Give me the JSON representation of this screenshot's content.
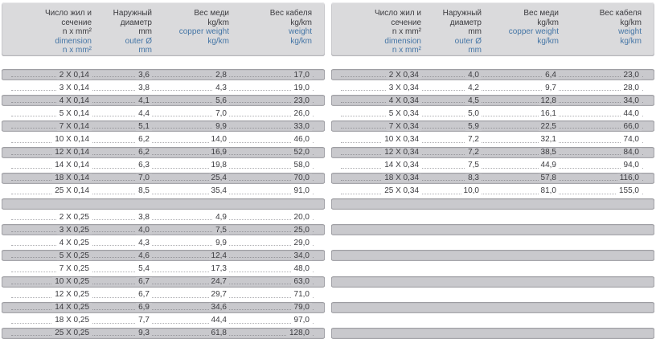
{
  "colors": {
    "header_bg": "#dadadc",
    "row_gray": "#c9c9cd",
    "row_white": "#ffffff",
    "accent_blue": "#4576a6",
    "text": "#3c3c40"
  },
  "header": {
    "columns": [
      {
        "ru": [
          "Число жил и",
          "сечение",
          "n x mm²"
        ],
        "en": [
          "dimension",
          "n x mm²"
        ]
      },
      {
        "ru": [
          "Наружный",
          "диаметр",
          "mm"
        ],
        "en": [
          "outer Ø",
          "mm"
        ]
      },
      {
        "ru": [
          "Вес меди",
          "kg/km"
        ],
        "en": [
          "copper weight",
          "kg/km"
        ]
      },
      {
        "ru": [
          "Вес кабеля",
          "kg/km"
        ],
        "en": [
          "weight",
          "kg/km"
        ]
      }
    ]
  },
  "tables": [
    {
      "id": "left",
      "groups": [
        {
          "rows": [
            [
              "2 X 0,14",
              "3,6",
              "2,8",
              "17,0"
            ],
            [
              "3 X 0,14",
              "3,8",
              "4,3",
              "19,0"
            ],
            [
              "4 X 0,14",
              "4,1",
              "5,6",
              "23,0"
            ],
            [
              "5 X 0,14",
              "4,4",
              "7,0",
              "26,0"
            ],
            [
              "7 X 0,14",
              "5,1",
              "9,9",
              "33,0"
            ],
            [
              "10 X 0,14",
              "6,2",
              "14,0",
              "46,0"
            ],
            [
              "12 X 0,14",
              "6,2",
              "16,9",
              "52,0"
            ],
            [
              "14 X 0,14",
              "6,3",
              "19,8",
              "58,0"
            ],
            [
              "18 X 0,14",
              "7,0",
              "25,4",
              "70,0"
            ],
            [
              "25 X 0,14",
              "8,5",
              "35,4",
              "91,0"
            ]
          ],
          "placeholder_rows": 0
        },
        {
          "rows": [
            [
              "2 X 0,25",
              "3,8",
              "4,9",
              "20,0"
            ],
            [
              "3 X 0,25",
              "4,0",
              "7,5",
              "25,0"
            ],
            [
              "4 X 0,25",
              "4,3",
              "9,9",
              "29,0"
            ],
            [
              "5 X 0,25",
              "4,6",
              "12,4",
              "34,0"
            ],
            [
              "7 X 0,25",
              "5,4",
              "17,3",
              "48,0"
            ],
            [
              "10 X 0,25",
              "6,7",
              "24,7",
              "63,0"
            ],
            [
              "12 X 0,25",
              "6,7",
              "29,7",
              "71,0"
            ],
            [
              "14 X 0,25",
              "6,9",
              "34,6",
              "79,0"
            ],
            [
              "18 X 0,25",
              "7,7",
              "44,4",
              "97,0"
            ],
            [
              "25 X 0,25",
              "9,3",
              "61,8",
              "128,0"
            ]
          ],
          "placeholder_rows": 0
        }
      ]
    },
    {
      "id": "right",
      "groups": [
        {
          "rows": [
            [
              "2 X 0,34",
              "4,0",
              "6,4",
              "23,0"
            ],
            [
              "3 X 0,34",
              "4,2",
              "9,7",
              "28,0"
            ],
            [
              "4 X 0,34",
              "4,5",
              "12,8",
              "34,0"
            ],
            [
              "5 X 0,34",
              "5,0",
              "16,1",
              "44,0"
            ],
            [
              "7 X 0,34",
              "5,9",
              "22,5",
              "66,0"
            ],
            [
              "10 X 0,34",
              "7,2",
              "32,1",
              "74,0"
            ],
            [
              "12 X 0,34",
              "7,2",
              "38,5",
              "84,0"
            ],
            [
              "14 X 0,34",
              "7,5",
              "44,9",
              "94,0"
            ],
            [
              "18 X 0,34",
              "8,3",
              "57,8",
              "116,0"
            ],
            [
              "25 X 0,34",
              "10,0",
              "81,0",
              "155,0"
            ]
          ],
          "placeholder_rows": 0
        },
        {
          "rows": [],
          "placeholder_rows": 10
        }
      ]
    }
  ]
}
